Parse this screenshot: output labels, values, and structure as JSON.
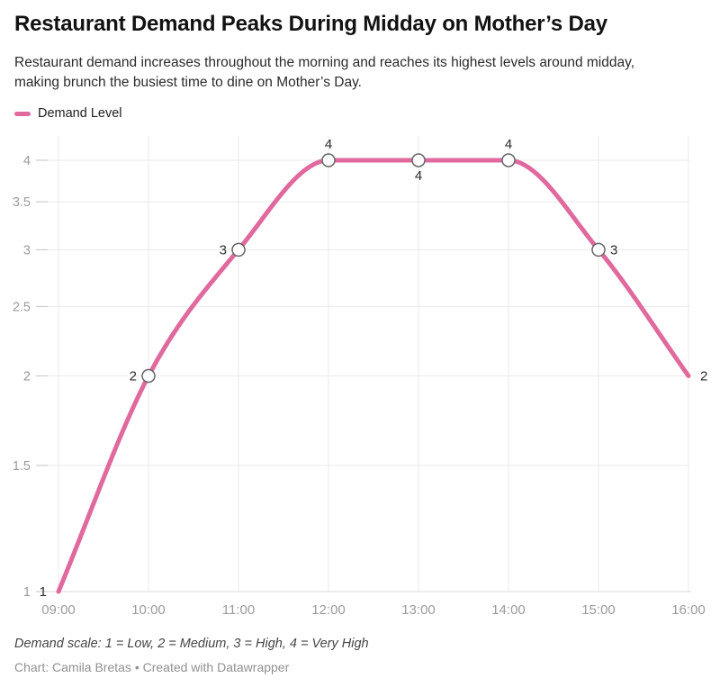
{
  "header": {
    "title": "Restaurant Demand Peaks During Midday on Mother’s Day",
    "subtitle": "Restaurant demand increases throughout the morning and reaches its highest levels around midday, making brunch the busiest time to dine on Mother’s Day.",
    "legend": {
      "label": "Demand Level",
      "swatch_color": "#e0699e"
    }
  },
  "chart_data": {
    "type": "line",
    "title": "Restaurant Demand Peaks During Midday on Mother’s Day",
    "x": [
      "09:00",
      "10:00",
      "11:00",
      "12:00",
      "13:00",
      "14:00",
      "15:00",
      "16:00"
    ],
    "series": [
      {
        "name": "Demand Level",
        "values": [
          1,
          2,
          3,
          4,
          4,
          4,
          3,
          2
        ],
        "color": "#e0699e",
        "point_labels": [
          "1",
          "2",
          "3",
          "4",
          "4",
          "4",
          "3",
          "2"
        ],
        "label_placement": [
          "left",
          "left",
          "left",
          "above",
          "below",
          "above",
          "right",
          "right"
        ],
        "markers": [
          false,
          true,
          true,
          true,
          true,
          true,
          true,
          false
        ]
      }
    ],
    "xlabel": "",
    "ylabel": "",
    "y_ticks": [
      1,
      1.5,
      2,
      2.5,
      3,
      3.5,
      4
    ],
    "ylim": [
      1,
      4
    ],
    "y_scale": "log",
    "grid": "on",
    "curve": "smooth-monotone",
    "marker_style": "open-circle",
    "legend_position": "top-left"
  },
  "footer": {
    "note": "Demand scale: 1 = Low, 2 = Medium, 3 = High, 4 = Very High",
    "credit": "Chart: Camila Bretas • Created with Datawrapper"
  },
  "colors": {
    "line": "#e0699e",
    "grid": "#eaeaea",
    "baseline": "#d8d8d8",
    "tick": "#c6c6c6",
    "axis_text": "#9b9b9b",
    "point_label_text": "#2d2d2d",
    "marker_stroke": "#666666",
    "marker_fill": "#ffffff"
  }
}
